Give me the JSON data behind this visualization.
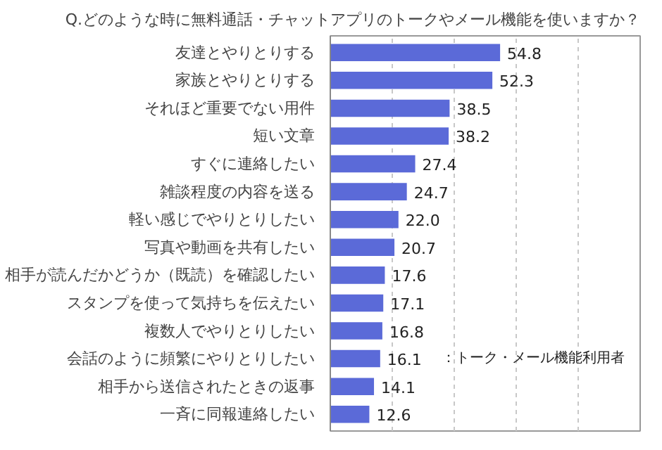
{
  "chart_data": {
    "type": "bar",
    "orientation": "horizontal",
    "title": "Q.どのような時に無料通話・チャットアプリのトークやメール機能を使いますか？",
    "categories": [
      "友達とやりとりする",
      "家族とやりとりする",
      "それほど重要でない用件",
      "短い文章",
      "すぐに連絡したい",
      "雑談程度の内容を送る",
      "軽い感じでやりとりしたい",
      "写真や動画を共有したい",
      "相手が読んだかどうか（既読）を確認したい",
      "スタンプを使って気持ちを伝えたい",
      "複数人でやりとりしたい",
      "会話のように頻繁にやりとりしたい",
      "相手から送信されたときの返事",
      "一斉に同報連絡したい"
    ],
    "values": [
      54.8,
      52.3,
      38.5,
      38.2,
      27.4,
      24.7,
      22.0,
      20.7,
      17.6,
      17.1,
      16.8,
      16.1,
      14.1,
      12.6
    ],
    "value_labels": [
      "54.8",
      "52.3",
      "38.5",
      "38.2",
      "27.4",
      "24.7",
      "22.0",
      "20.7",
      "17.6",
      "17.1",
      "16.8",
      "16.1",
      "14.1",
      "12.6"
    ],
    "color": "#5b6ad8",
    "xlim": [
      0,
      100
    ],
    "xticks": [
      {
        "value": 0,
        "label": null
      },
      {
        "value": 20,
        "label": null
      },
      {
        "value": 40,
        "label": null
      },
      {
        "value": 60,
        "label": null
      },
      {
        "value": 80,
        "label": null
      },
      {
        "value": 100,
        "label": null
      }
    ],
    "grid": "x",
    "annotations": [
      "：トーク・メール機能利用者"
    ]
  }
}
